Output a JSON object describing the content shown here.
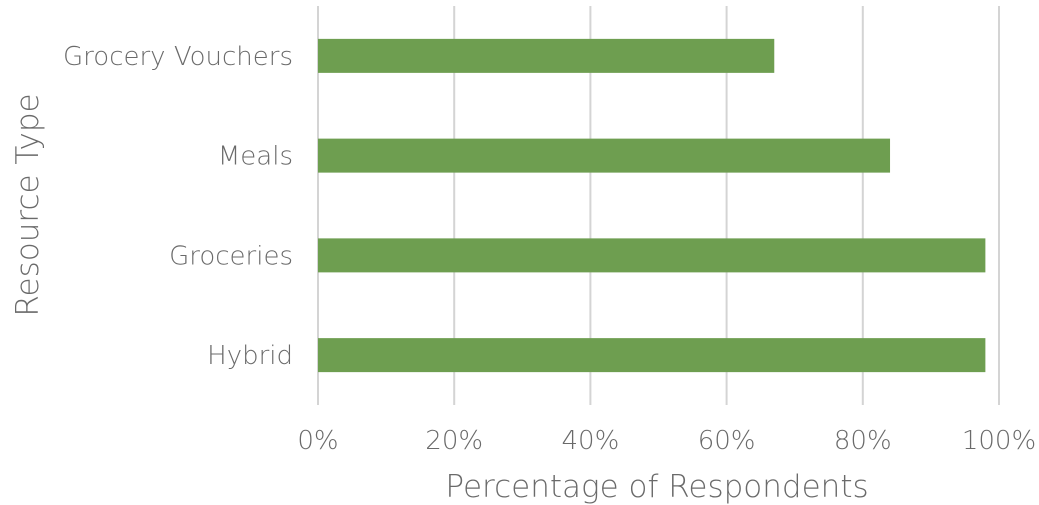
{
  "chart_data": {
    "type": "bar",
    "orientation": "horizontal",
    "categories": [
      "Grocery Vouchers",
      "Meals",
      "Groceries",
      "Hybrid"
    ],
    "values": [
      0.67,
      0.84,
      0.98,
      0.98
    ],
    "xlabel": "Percentage of Respondents",
    "ylabel": "Resource Type",
    "xlim": [
      0,
      1
    ],
    "xticks": [
      0,
      0.2,
      0.4,
      0.6,
      0.8,
      1.0
    ],
    "xtick_labels": [
      "0%",
      "20%",
      "40%",
      "60%",
      "80%",
      "100%"
    ],
    "grid": "vertical",
    "legend": "none",
    "bar_color": "#6e9e50"
  }
}
